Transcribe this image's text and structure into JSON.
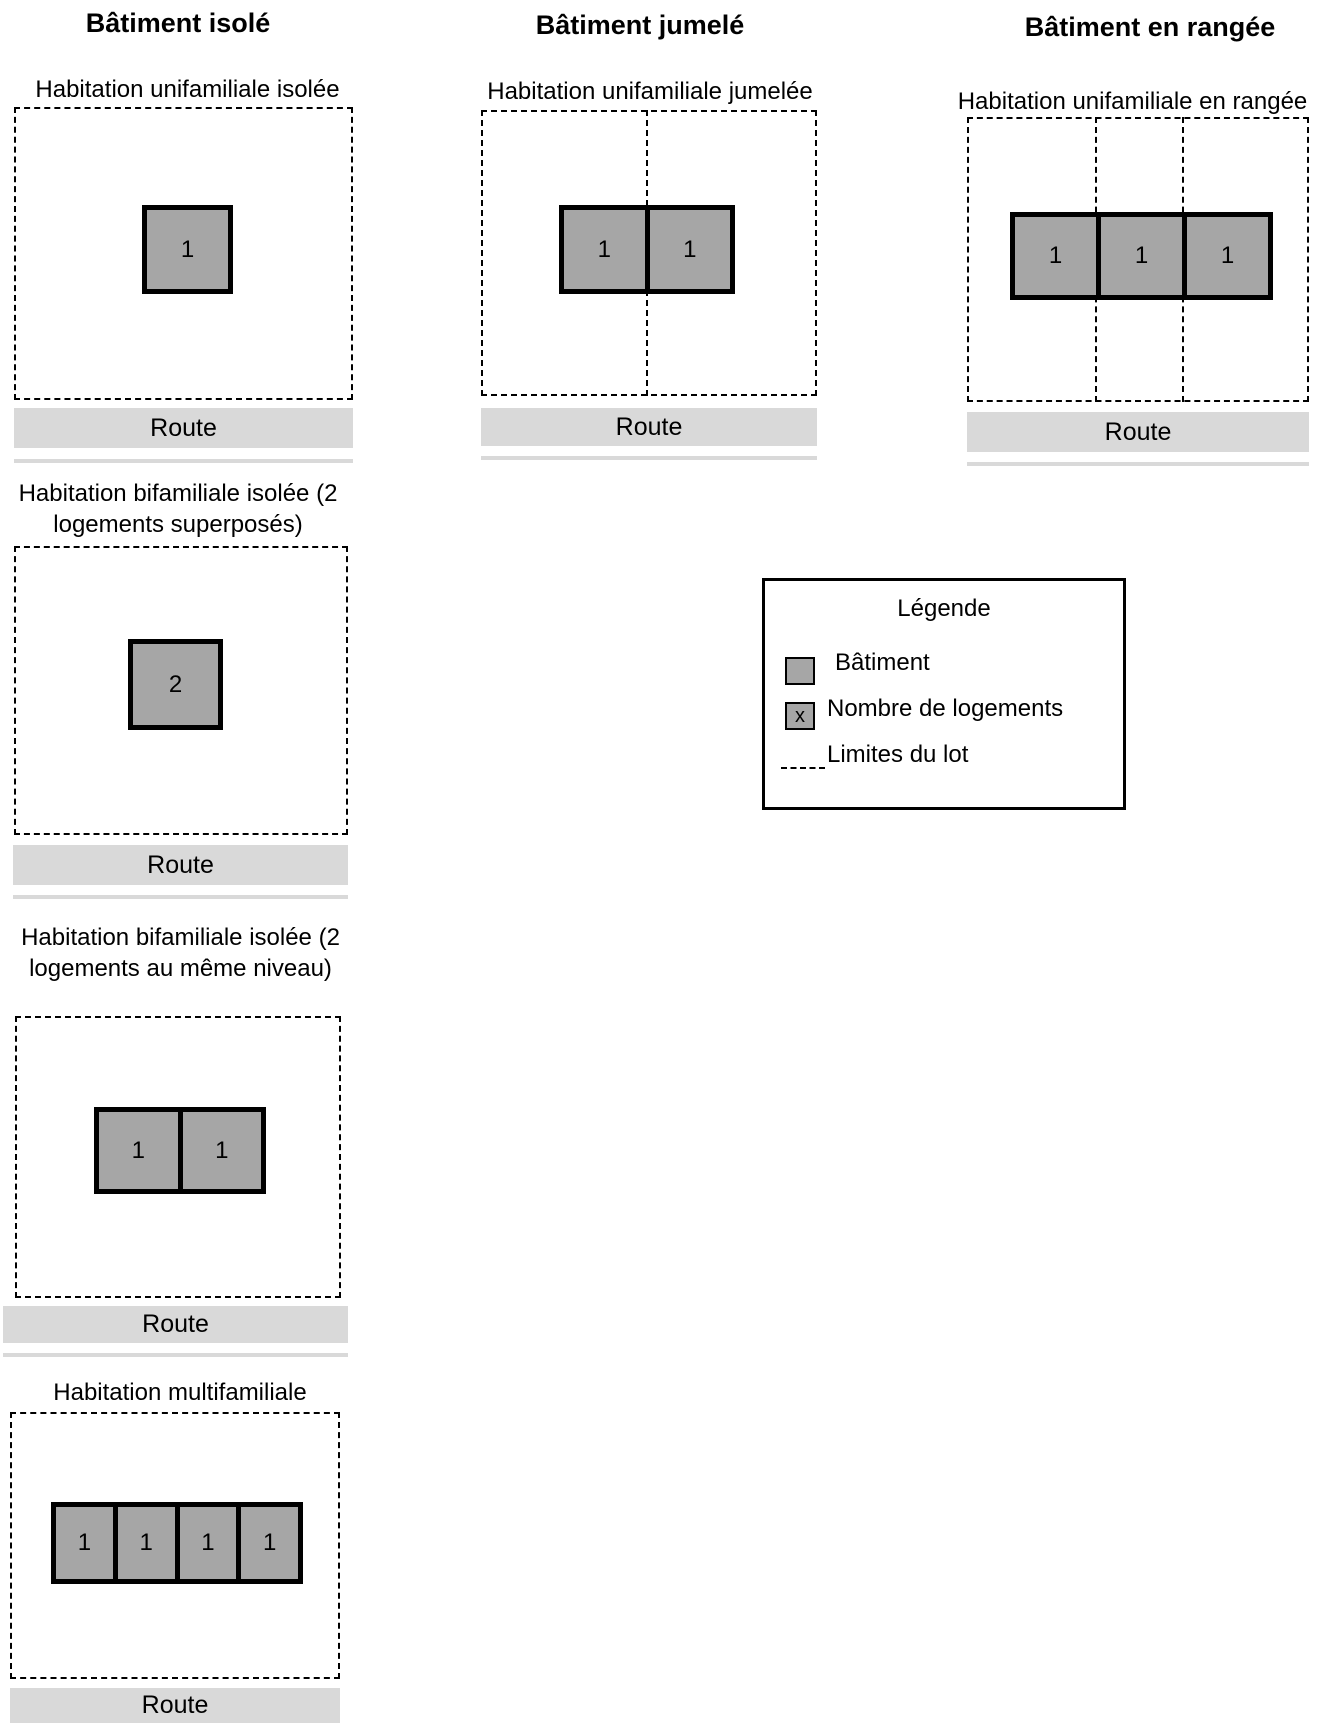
{
  "headings": {
    "isole": "Bâtiment isolé",
    "jumele": "Bâtiment jumelé",
    "rangee": "Bâtiment en rangée"
  },
  "road_label": "Route",
  "diagrams": {
    "unifamiliale_isolee": {
      "title": "Habitation unifamiliale isolée",
      "units": [
        "1"
      ]
    },
    "unifamiliale_jumelee": {
      "title": "Habitation unifamiliale jumelée",
      "units": [
        "1",
        "1"
      ]
    },
    "unifamiliale_rangee": {
      "title": "Habitation unifamiliale en rangée",
      "units": [
        "1",
        "1",
        "1"
      ]
    },
    "bifamiliale_superposes": {
      "title": "Habitation bifamiliale isolée (2 logements superposés)",
      "units": [
        "2"
      ]
    },
    "bifamiliale_meme_niveau": {
      "title": "Habitation bifamiliale isolée (2 logements au même niveau)",
      "units": [
        "1",
        "1"
      ]
    },
    "multifamiliale": {
      "title": "Habitation multifamiliale",
      "units": [
        "1",
        "1",
        "1",
        "1"
      ]
    }
  },
  "legend": {
    "title": "Légende",
    "building": "Bâtiment",
    "units_count": "Nombre de logements",
    "units_count_symbol": "x",
    "lot_limits": "Limites du lot"
  },
  "colors": {
    "building_fill": "#a6a6a6",
    "road_fill": "#d9d9d9",
    "outline": "#000000"
  }
}
